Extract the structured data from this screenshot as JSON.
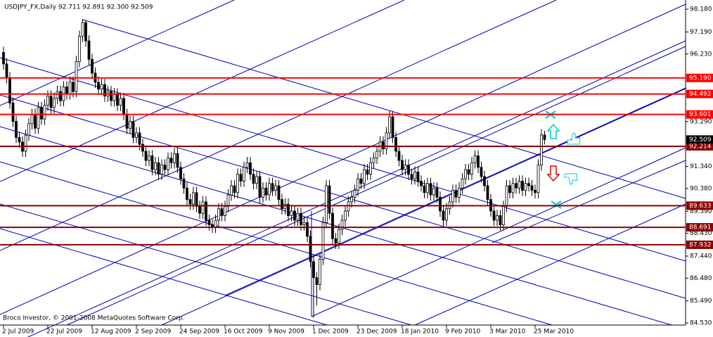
{
  "chart_data": {
    "type": "candlestick",
    "title": "USDJPY_FX,Daily  92.711 92.891 92.300 92.509",
    "footnote": "Broco Investor, © 2001-2008 MetaQuotes Software Corp.",
    "categories": [
      "2 Jul 2009",
      null,
      null,
      null,
      null,
      null,
      null,
      null,
      null,
      null,
      null,
      null,
      null,
      null,
      "22 Jul 2009",
      null,
      null,
      null,
      null,
      null,
      null,
      null,
      null,
      null,
      null,
      null,
      null,
      null,
      "12 Aug 2009",
      null,
      null,
      null,
      null,
      null,
      null,
      null,
      null,
      null,
      null,
      null,
      null,
      null,
      "2 Sep 2009",
      null,
      null,
      null,
      null,
      null,
      null,
      null,
      null,
      null,
      null,
      null,
      null,
      null,
      "24 Sep 2009",
      null,
      null,
      null,
      null,
      null,
      null,
      null,
      null,
      null,
      null,
      null,
      null,
      null,
      "16 Oct 2009",
      null,
      null,
      null,
      null,
      null,
      null,
      null,
      null,
      null,
      null,
      null,
      null,
      null,
      "9 Nov 2009",
      null,
      null,
      null,
      null,
      null,
      null,
      null,
      null,
      null,
      null,
      null,
      null,
      null,
      "1 Dec 2009",
      null,
      null,
      null,
      null,
      null,
      null,
      null,
      null,
      null,
      null,
      null,
      null,
      null,
      "23 Dec 2009",
      null,
      null,
      null,
      null,
      null,
      null,
      null,
      null,
      null,
      null,
      null,
      null,
      null,
      "18 Jan 2010",
      null,
      null,
      null,
      null,
      null,
      null,
      null,
      null,
      null,
      null,
      null,
      null,
      null,
      "9 Feb 2010",
      null,
      null,
      null,
      null,
      null,
      null,
      null,
      null,
      null,
      null,
      null,
      null,
      null,
      "3 Mar 2010",
      null,
      null,
      null,
      null,
      null,
      null,
      null,
      null,
      null,
      null,
      null,
      null,
      null,
      "25 Mar 2010",
      null,
      null,
      null
    ],
    "open": [
      96.3,
      95.8,
      95.2,
      94.1,
      93.3,
      92.6,
      92.4,
      92.0,
      92.7,
      93.2,
      93.6,
      93.0,
      93.9,
      93.4,
      94.0,
      94.4,
      93.9,
      94.3,
      94.6,
      94.2,
      94.8,
      94.5,
      95.0,
      94.6,
      95.9,
      97.0,
      97.6,
      96.8,
      96.0,
      95.4,
      95.0,
      94.7,
      94.9,
      94.4,
      94.6,
      94.2,
      94.5,
      94.0,
      94.3,
      93.6,
      93.0,
      93.3,
      92.6,
      92.8,
      92.3,
      92.0,
      91.6,
      91.8,
      91.2,
      91.5,
      91.0,
      91.4,
      91.2,
      91.7,
      91.5,
      91.9,
      91.3,
      90.8,
      90.4,
      89.9,
      89.7,
      90.2,
      89.6,
      89.3,
      89.8,
      89.0,
      88.8,
      88.7,
      89.0,
      89.5,
      89.2,
      89.6,
      90.1,
      90.5,
      90.2,
      91.0,
      90.7,
      91.3,
      91.5,
      91.0,
      90.6,
      90.9,
      90.0,
      90.4,
      90.1,
      90.6,
      90.3,
      90.5,
      89.9,
      89.5,
      89.7,
      89.2,
      89.4,
      89.0,
      89.3,
      88.8,
      88.9,
      88.3,
      87.2,
      86.5,
      86.2,
      87.3,
      88.9,
      90.5,
      89.3,
      88.2,
      88.0,
      88.6,
      89.0,
      89.4,
      89.8,
      90.0,
      90.3,
      90.8,
      90.6,
      91.2,
      91.0,
      91.5,
      91.7,
      92.0,
      92.4,
      92.1,
      92.8,
      93.5,
      92.6,
      92.0,
      91.6,
      91.2,
      91.4,
      91.0,
      90.8,
      91.1,
      90.7,
      90.5,
      90.2,
      90.6,
      90.1,
      90.4,
      90.0,
      89.4,
      89.0,
      89.5,
      89.8,
      90.3,
      90.0,
      90.4,
      90.8,
      91.2,
      91.0,
      91.5,
      91.8,
      91.3,
      90.9,
      90.5,
      89.9,
      89.4,
      89.0,
      89.2,
      88.8,
      89.6,
      90.5,
      90.2,
      90.6,
      90.4,
      90.7,
      90.3,
      90.6,
      90.5,
      90.3,
      90.2,
      91.4,
      92.711
    ],
    "high": [
      96.55,
      96.05,
      95.45,
      94.35,
      93.55,
      92.85,
      92.65,
      92.95,
      93.45,
      93.85,
      93.85,
      94.15,
      94.15,
      94.25,
      94.65,
      94.65,
      94.55,
      94.85,
      94.85,
      95.05,
      95.05,
      95.25,
      95.25,
      96.15,
      97.25,
      97.75,
      97.7,
      97.05,
      96.25,
      95.65,
      95.25,
      95.15,
      95.15,
      94.85,
      94.85,
      94.75,
      94.75,
      94.55,
      94.55,
      93.85,
      93.55,
      93.55,
      93.05,
      93.05,
      92.55,
      92.25,
      92.05,
      92.05,
      91.75,
      91.75,
      91.65,
      91.65,
      91.95,
      91.95,
      92.15,
      92.15,
      91.55,
      91.05,
      90.65,
      90.15,
      90.45,
      90.45,
      89.85,
      90.05,
      90.05,
      89.25,
      89.05,
      89.25,
      89.75,
      89.75,
      89.85,
      90.35,
      90.75,
      90.75,
      91.25,
      91.25,
      91.55,
      91.75,
      91.75,
      91.25,
      91.15,
      91.15,
      90.65,
      90.65,
      90.85,
      90.85,
      90.75,
      90.75,
      90.15,
      89.95,
      89.95,
      89.65,
      89.65,
      89.55,
      89.55,
      89.15,
      89.15,
      88.55,
      87.45,
      86.75,
      87.55,
      89.15,
      90.75,
      90.75,
      89.55,
      88.45,
      88.85,
      89.25,
      89.65,
      90.05,
      90.25,
      90.55,
      91.05,
      91.05,
      91.45,
      91.45,
      91.75,
      91.95,
      92.25,
      92.65,
      92.65,
      93.05,
      93.75,
      93.75,
      92.85,
      92.25,
      91.85,
      91.65,
      91.65,
      91.25,
      91.35,
      91.35,
      90.95,
      90.75,
      90.85,
      90.85,
      90.65,
      90.65,
      90.25,
      89.65,
      89.75,
      90.05,
      90.55,
      90.55,
      90.65,
      91.05,
      91.45,
      91.45,
      91.75,
      92.05,
      92.05,
      91.55,
      91.15,
      90.75,
      90.15,
      89.65,
      89.45,
      89.45,
      89.85,
      90.75,
      90.75,
      90.85,
      90.85,
      90.95,
      90.95,
      90.85,
      90.85,
      90.75,
      90.55,
      91.65,
      92.96,
      92.891
    ],
    "low": [
      95.55,
      94.95,
      93.85,
      93.05,
      92.35,
      92.15,
      91.75,
      91.75,
      92.45,
      92.95,
      92.75,
      92.75,
      93.15,
      93.15,
      93.75,
      93.65,
      93.65,
      94.05,
      93.95,
      93.95,
      94.25,
      94.25,
      94.35,
      94.35,
      95.65,
      96.75,
      96.55,
      95.75,
      95.15,
      94.75,
      94.45,
      94.45,
      94.15,
      94.15,
      93.95,
      93.95,
      93.75,
      93.75,
      93.35,
      92.75,
      92.75,
      92.35,
      92.35,
      92.05,
      91.75,
      91.35,
      91.35,
      90.95,
      90.95,
      90.75,
      90.75,
      90.95,
      90.95,
      91.25,
      91.25,
      91.05,
      90.55,
      90.15,
      89.65,
      89.45,
      89.45,
      89.35,
      89.05,
      89.05,
      88.75,
      88.55,
      88.45,
      88.45,
      88.75,
      88.95,
      88.95,
      89.35,
      89.85,
      89.95,
      89.95,
      90.45,
      90.45,
      91.05,
      90.75,
      90.35,
      90.35,
      89.75,
      89.75,
      89.85,
      89.85,
      90.05,
      90.05,
      89.65,
      89.25,
      89.25,
      88.95,
      88.95,
      88.75,
      88.75,
      88.55,
      88.55,
      88.05,
      86.95,
      84.75,
      85.3,
      85.95,
      87.05,
      88.65,
      89.05,
      87.95,
      87.75,
      87.75,
      88.35,
      88.75,
      89.15,
      89.55,
      89.75,
      90.05,
      90.35,
      90.35,
      90.75,
      90.75,
      91.25,
      91.45,
      91.75,
      91.85,
      91.85,
      92.55,
      92.35,
      91.75,
      91.35,
      90.95,
      90.95,
      90.75,
      90.55,
      90.55,
      90.45,
      90.25,
      89.95,
      89.95,
      89.85,
      89.85,
      89.75,
      89.15,
      88.75,
      88.75,
      89.25,
      89.55,
      89.75,
      89.75,
      90.15,
      90.55,
      90.75,
      90.75,
      91.25,
      91.05,
      90.65,
      90.25,
      89.65,
      89.15,
      88.75,
      88.75,
      88.55,
      88.55,
      89.35,
      89.95,
      89.95,
      90.15,
      90.15,
      90.05,
      90.05,
      90.25,
      90.05,
      89.95,
      89.95,
      91.15,
      92.3
    ],
    "close": [
      95.8,
      95.2,
      94.1,
      93.3,
      92.6,
      92.4,
      92.0,
      92.7,
      93.2,
      93.6,
      93.0,
      93.9,
      93.4,
      94.0,
      94.4,
      93.9,
      94.3,
      94.6,
      94.2,
      94.8,
      94.5,
      95.0,
      94.6,
      95.9,
      97.0,
      97.6,
      96.8,
      96.0,
      95.4,
      95.0,
      94.7,
      94.9,
      94.4,
      94.6,
      94.2,
      94.5,
      94.0,
      94.3,
      93.6,
      93.0,
      93.3,
      92.6,
      92.8,
      92.3,
      92.0,
      91.6,
      91.8,
      91.2,
      91.5,
      91.0,
      91.4,
      91.2,
      91.7,
      91.5,
      91.9,
      91.3,
      90.8,
      90.4,
      89.9,
      89.7,
      90.2,
      89.6,
      89.3,
      89.8,
      89.0,
      88.8,
      88.7,
      89.0,
      89.5,
      89.2,
      89.6,
      90.1,
      90.5,
      90.2,
      91.0,
      90.7,
      91.3,
      91.5,
      91.0,
      90.6,
      90.9,
      90.0,
      90.4,
      90.1,
      90.6,
      90.3,
      90.5,
      89.9,
      89.5,
      89.7,
      89.2,
      89.4,
      89.0,
      89.3,
      88.8,
      88.9,
      88.3,
      87.2,
      86.5,
      86.2,
      87.3,
      88.9,
      90.5,
      89.3,
      88.2,
      88.0,
      88.6,
      89.0,
      89.4,
      89.8,
      90.0,
      90.3,
      90.8,
      90.6,
      91.2,
      91.0,
      91.5,
      91.7,
      92.0,
      92.4,
      92.1,
      92.8,
      93.5,
      92.6,
      92.0,
      91.6,
      91.2,
      91.4,
      91.0,
      90.8,
      91.1,
      90.7,
      90.5,
      90.2,
      90.6,
      90.1,
      90.4,
      90.0,
      89.4,
      89.0,
      89.5,
      89.8,
      90.3,
      90.0,
      90.4,
      90.8,
      91.2,
      91.0,
      91.5,
      91.8,
      91.3,
      90.9,
      90.5,
      89.9,
      89.4,
      89.0,
      89.2,
      88.8,
      89.6,
      90.5,
      90.2,
      90.6,
      90.4,
      90.7,
      90.3,
      90.6,
      90.5,
      90.3,
      90.2,
      91.4,
      92.711,
      92.509
    ],
    "up_color": "#ffffff",
    "down_color": "#000000",
    "outline_color": "#000000",
    "ylim": [
      84.44,
      98.58
    ],
    "yticks": [
      {
        "value": 98.18,
        "label": "98.180"
      },
      {
        "value": 97.19,
        "label": "97.190"
      },
      {
        "value": 96.23,
        "label": "96.230"
      },
      {
        "value": 93.29,
        "label": "93.290"
      },
      {
        "value": 91.34,
        "label": "91.340"
      },
      {
        "value": 90.38,
        "label": "90.380"
      },
      {
        "value": 89.39,
        "label": "89.390"
      },
      {
        "value": 88.43,
        "label": "88.430"
      },
      {
        "value": 87.44,
        "label": "87.440"
      },
      {
        "value": 86.48,
        "label": "86.480"
      },
      {
        "value": 85.49,
        "label": "85.490"
      },
      {
        "value": 84.53,
        "label": "84.530"
      }
    ],
    "levels": [
      {
        "value": 95.19,
        "label": "95.190",
        "color": "#ff0000"
      },
      {
        "value": 94.492,
        "label": "94.492",
        "color": "#ff0000"
      },
      {
        "value": 93.601,
        "label": "93.601",
        "color": "#ff0000"
      },
      {
        "value": 92.214,
        "label": "92.214",
        "color": "#8b0000"
      },
      {
        "value": 89.633,
        "label": "89.633",
        "color": "#8b0000"
      },
      {
        "value": 88.691,
        "label": "88.691",
        "color": "#8b0000"
      },
      {
        "value": 87.932,
        "label": "87.932",
        "color": "#8b0000"
      }
    ],
    "last_price": {
      "value": 92.509,
      "label": "92.509",
      "color": "#000000"
    },
    "grid": false
  }
}
